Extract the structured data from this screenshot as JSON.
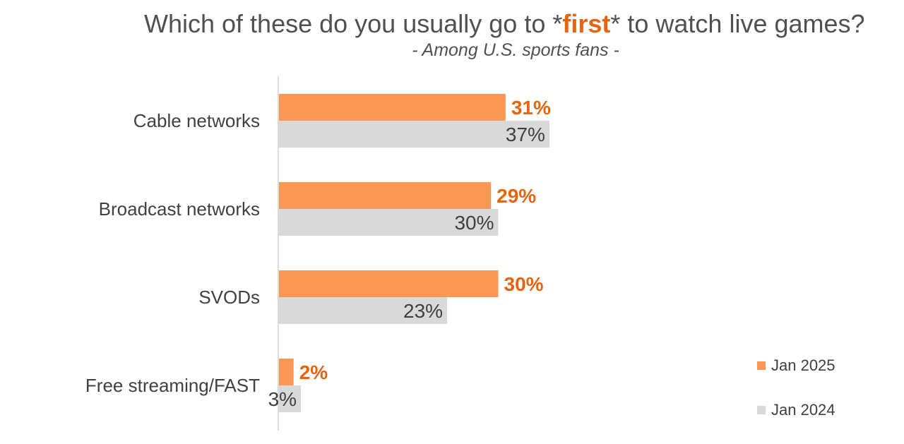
{
  "title": {
    "prefix": "Which of these do you usually go to *",
    "highlight": "first",
    "suffix": "* to watch live games?"
  },
  "subtitle": "- Among U.S. sports fans -",
  "colors": {
    "series_2025": "#fd9755",
    "series_2024": "#d9d9d9",
    "label_2025": "#e8630f"
  },
  "chart_data": {
    "type": "bar",
    "orientation": "horizontal",
    "categories": [
      "Cable networks",
      "Broadcast networks",
      "SVODs",
      "Free streaming/FAST"
    ],
    "series": [
      {
        "name": "Jan 2025",
        "values": [
          31,
          29,
          30,
          2
        ],
        "labels": [
          "31%",
          "29%",
          "30%",
          "2%"
        ]
      },
      {
        "name": "Jan 2024",
        "values": [
          37,
          30,
          23,
          3
        ],
        "labels": [
          "37%",
          "30%",
          "23%",
          "3%"
        ]
      }
    ],
    "unit": "%",
    "grid": false,
    "legend": "bottom-right"
  }
}
